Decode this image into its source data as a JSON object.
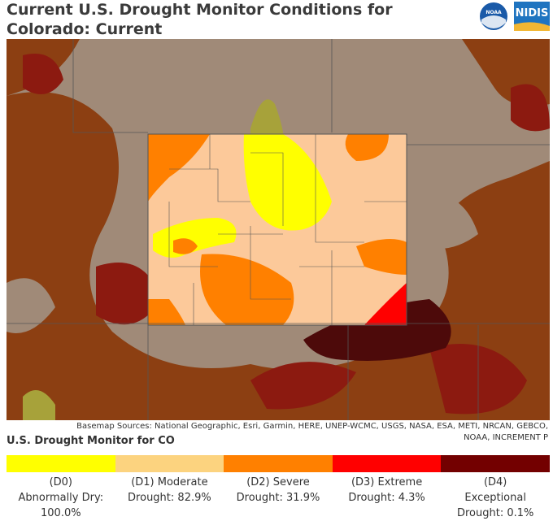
{
  "header": {
    "title": "Current U.S. Drought Monitor Conditions for Colorado: Current",
    "logos": [
      "NOAA",
      "NIDIS"
    ]
  },
  "map": {
    "attribution": "Basemap Sources: National Geographic, Esri, Garmin, HERE, UNEP-WCMC, USGS, NASA, ESA, METI, NRCAN, GEBCO, NOAA, INCREMENT P"
  },
  "legend": {
    "title": "U.S. Drought Monitor for CO",
    "items": [
      {
        "label": "(D0) Abnormally Dry:",
        "percent": "100.0%",
        "color": "#ffff00"
      },
      {
        "label": "(D1) Moderate Drought:",
        "percent": "82.9%",
        "color": "#fcd37f"
      },
      {
        "label": "(D2) Severe Drought:",
        "percent": "31.9%",
        "color": "#ff8000"
      },
      {
        "label": "(D3) Extreme Drought:",
        "percent": "4.3%",
        "color": "#ff0000"
      },
      {
        "label": "(D4) Exceptional Drought:",
        "percent": "0.1%",
        "color": "#730000"
      }
    ]
  }
}
